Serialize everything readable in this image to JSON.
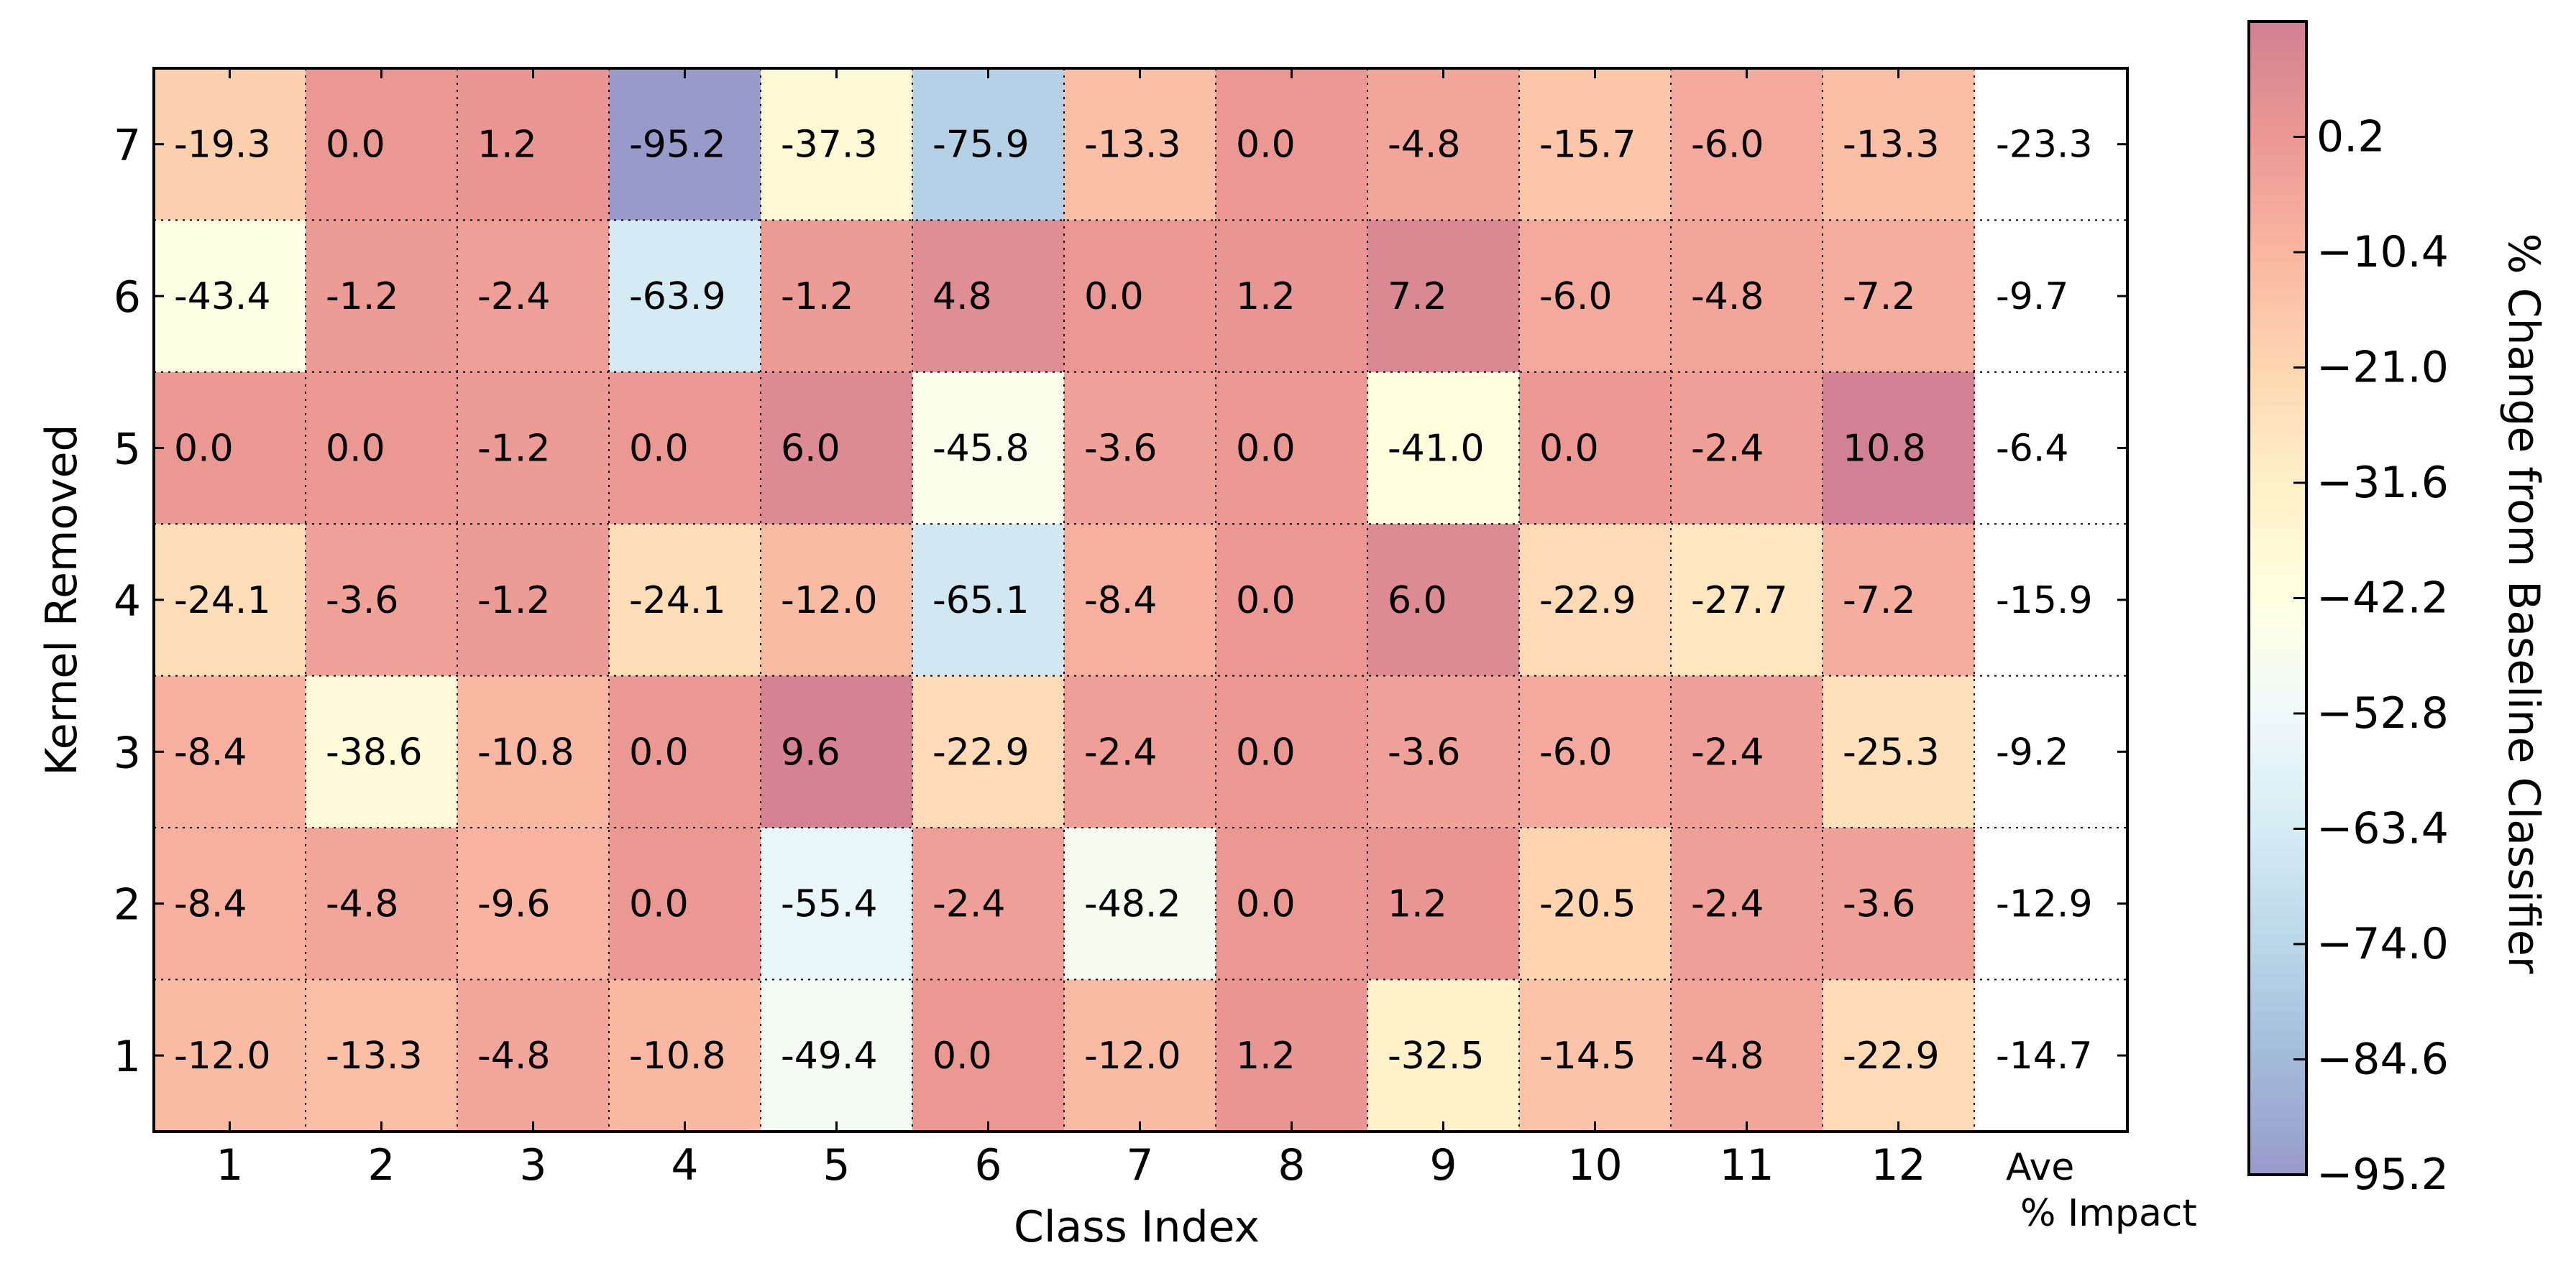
{
  "chart_data": {
    "type": "heatmap",
    "title": "",
    "xlabel": "Class Index",
    "ylabel": "Kernel Removed",
    "x_categories": [
      "1",
      "2",
      "3",
      "4",
      "5",
      "6",
      "7",
      "8",
      "9",
      "10",
      "11",
      "12"
    ],
    "extra_column_label_line1": "Ave",
    "extra_column_label_line2": "% Impact",
    "y_categories": [
      "7",
      "6",
      "5",
      "4",
      "3",
      "2",
      "1"
    ],
    "values": [
      [
        -19.3,
        0.0,
        1.2,
        -95.2,
        -37.3,
        -75.9,
        -13.3,
        0.0,
        -4.8,
        -15.7,
        -6.0,
        -13.3
      ],
      [
        -43.4,
        -1.2,
        -2.4,
        -63.9,
        -1.2,
        4.8,
        0.0,
        1.2,
        7.2,
        -6.0,
        -4.8,
        -7.2
      ],
      [
        0.0,
        0.0,
        -1.2,
        0.0,
        6.0,
        -45.8,
        -3.6,
        0.0,
        -41.0,
        0.0,
        -2.4,
        10.8
      ],
      [
        -24.1,
        -3.6,
        -1.2,
        -24.1,
        -12.0,
        -65.1,
        -8.4,
        0.0,
        6.0,
        -22.9,
        -27.7,
        -7.2
      ],
      [
        -8.4,
        -38.6,
        -10.8,
        0.0,
        9.6,
        -22.9,
        -2.4,
        0.0,
        -3.6,
        -6.0,
        -2.4,
        -25.3
      ],
      [
        -8.4,
        -4.8,
        -9.6,
        0.0,
        -55.4,
        -2.4,
        -48.2,
        0.0,
        1.2,
        -20.5,
        -2.4,
        -3.6
      ],
      [
        -12.0,
        -13.3,
        -4.8,
        -10.8,
        -49.4,
        0.0,
        -12.0,
        1.2,
        -32.5,
        -14.5,
        -4.8,
        -22.9
      ]
    ],
    "row_averages": [
      -23.3,
      -9.7,
      -6.4,
      -15.9,
      -9.2,
      -12.9,
      -14.7
    ],
    "colorbar": {
      "label": "% Change from Baseline Classifier",
      "ticks": [
        "0.2",
        "−10.4",
        "−21.0",
        "−31.6",
        "−42.2",
        "−52.8",
        "−63.4",
        "−74.0",
        "−84.6",
        "−95.2"
      ],
      "tick_values": [
        0.2,
        -10.4,
        -21.0,
        -31.6,
        -42.2,
        -52.8,
        -63.4,
        -74.0,
        -84.6,
        -95.2
      ],
      "vmin": -95.2,
      "vmax": 10.8,
      "colormap": "RdYlBu_r",
      "alpha": 0.5
    },
    "grid": "dotted"
  }
}
